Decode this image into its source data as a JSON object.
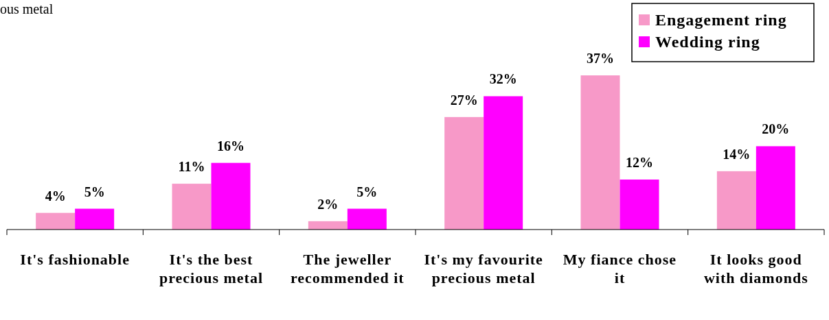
{
  "chart_data": {
    "type": "bar",
    "title": "ous metal",
    "categories": [
      "It's fashionable",
      "It's the best precious metal",
      "The jeweller recommended it",
      "It's my favourite precious metal",
      "My fiance chose it",
      "It looks good with diamonds"
    ],
    "series": [
      {
        "name": "Engagement ring",
        "color": "#f799c8",
        "values": [
          4,
          11,
          2,
          27,
          37,
          14
        ],
        "value_labels": [
          "4%",
          "11%",
          "2%",
          "27%",
          "37%",
          "14%"
        ]
      },
      {
        "name": "Wedding ring",
        "color": "#ff00ff",
        "values": [
          5,
          16,
          5,
          32,
          12,
          20
        ],
        "value_labels": [
          "5%",
          "16%",
          "5%",
          "32%",
          "12%",
          "20%"
        ]
      }
    ],
    "legend": "top right"
  }
}
